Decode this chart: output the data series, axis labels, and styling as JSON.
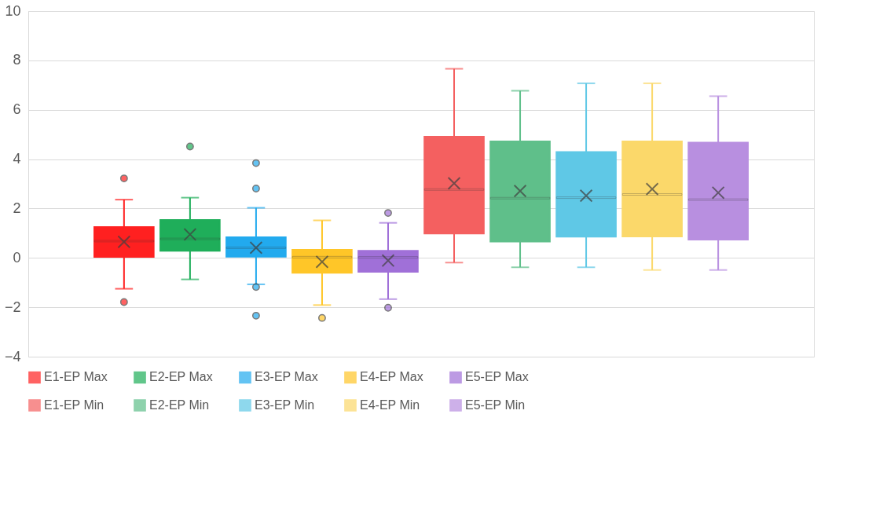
{
  "chart_data": {
    "type": "box",
    "categories": [
      null
    ],
    "ylim": [
      -4,
      10
    ],
    "yticks": [
      -4,
      -2,
      0,
      2,
      4,
      6,
      8,
      10
    ],
    "grid": "y",
    "legend": "bottom",
    "tick_labels": "y",
    "series": [
      {
        "name": "E1-EP Max",
        "color": "#ff2020",
        "boxes": [
          {
            "low": -1.25,
            "q1": 0.04,
            "median": 0.68,
            "q3": 1.25,
            "high": 2.36,
            "mean": 0.65,
            "outliers": [
              3.22,
              -1.79
            ]
          }
        ]
      },
      {
        "name": "E2-EP Max",
        "color": "#1fae5a",
        "boxes": [
          {
            "low": -0.87,
            "q1": 0.29,
            "median": 0.77,
            "q3": 1.54,
            "high": 2.44,
            "mean": 0.95,
            "outliers": [
              4.51
            ]
          }
        ]
      },
      {
        "name": "E3-EP Max",
        "color": "#22aaee",
        "boxes": [
          {
            "low": -1.07,
            "q1": 0.05,
            "median": 0.41,
            "q3": 0.84,
            "high": 2.03,
            "mean": 0.41,
            "outliers": [
              3.84,
              2.81,
              -1.18,
              -2.34
            ]
          }
        ]
      },
      {
        "name": "E4-EP Max",
        "color": "#ffc628",
        "boxes": [
          {
            "low": -1.91,
            "q1": -0.6,
            "median": 0.03,
            "q3": 0.33,
            "high": 1.52,
            "mean": -0.16,
            "outliers": [
              -2.43
            ]
          }
        ]
      },
      {
        "name": "E5-EP Max",
        "color": "#a070d8",
        "boxes": [
          {
            "low": -1.67,
            "q1": -0.56,
            "median": 0.02,
            "q3": 0.29,
            "high": 1.42,
            "mean": -0.11,
            "outliers": [
              1.82,
              -2.02
            ]
          }
        ]
      },
      {
        "name": "E1-EP Min",
        "color": "#f46060",
        "boxes": [
          {
            "low": -0.19,
            "q1": 0.99,
            "median": 2.77,
            "q3": 4.91,
            "high": 7.66,
            "mean": 3.02
          }
        ]
      },
      {
        "name": "E2-EP Min",
        "color": "#5fbf8a",
        "boxes": [
          {
            "low": -0.38,
            "q1": 0.66,
            "median": 2.42,
            "q3": 4.72,
            "high": 6.77,
            "mean": 2.71
          }
        ]
      },
      {
        "name": "E3-EP Min",
        "color": "#5fc8e6",
        "boxes": [
          {
            "low": -0.38,
            "q1": 0.86,
            "median": 2.44,
            "q3": 4.29,
            "high": 7.07,
            "mean": 2.52
          }
        ]
      },
      {
        "name": "E4-EP Min",
        "color": "#fbd86a",
        "boxes": [
          {
            "low": -0.49,
            "q1": 0.87,
            "median": 2.57,
            "q3": 4.72,
            "high": 7.07,
            "mean": 2.79
          }
        ]
      },
      {
        "name": "E5-EP Min",
        "color": "#b88fe0",
        "boxes": [
          {
            "low": -0.49,
            "q1": 0.74,
            "median": 2.36,
            "q3": 4.67,
            "high": 6.55,
            "mean": 2.64
          }
        ]
      }
    ]
  }
}
